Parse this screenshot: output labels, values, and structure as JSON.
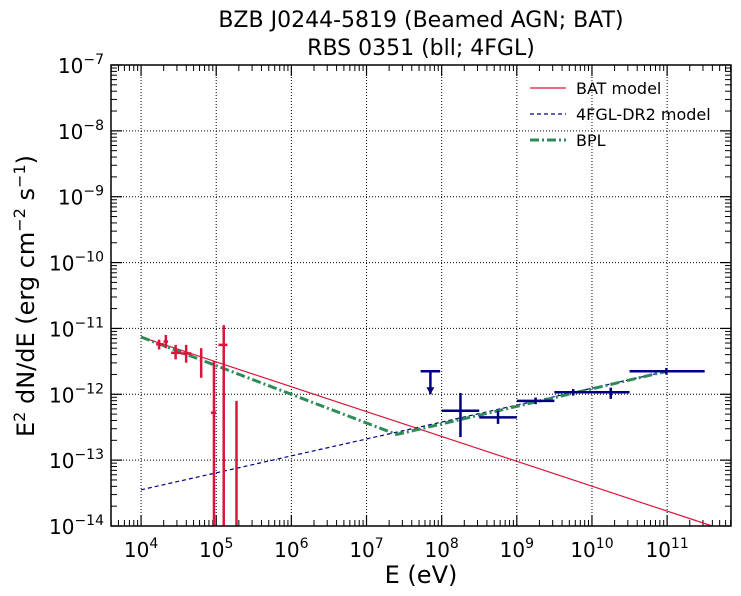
{
  "chart_data": {
    "type": "scatter",
    "title_line1": "BZB J0244-5819 (Beamed AGN; BAT)",
    "title_line2": "RBS 0351 (bll; 4FGL)",
    "xlabel": "E (eV)",
    "ylabel_main": "E",
    "ylabel_rest": "dN/dE (erg cm",
    "ylabel_end": "s",
    "ylabel_close": ")",
    "ylabel_exp1": "2",
    "ylabel_exp2": "−2",
    "ylabel_exp3": "−1",
    "x_log_range": [
      3.6,
      11.85
    ],
    "y_log_range": [
      -14,
      -7
    ],
    "x_scale": "log",
    "y_scale": "log",
    "grid": true,
    "legend_position": "top-right",
    "x_ticks": [
      {
        "exp": 4,
        "label_base": "10",
        "label_exp": "4"
      },
      {
        "exp": 5,
        "label_base": "10",
        "label_exp": "5"
      },
      {
        "exp": 6,
        "label_base": "10",
        "label_exp": "6"
      },
      {
        "exp": 7,
        "label_base": "10",
        "label_exp": "7"
      },
      {
        "exp": 8,
        "label_base": "10",
        "label_exp": "8"
      },
      {
        "exp": 9,
        "label_base": "10",
        "label_exp": "9"
      },
      {
        "exp": 10,
        "label_base": "10",
        "label_exp": "10"
      },
      {
        "exp": 11,
        "label_base": "10",
        "label_exp": "11"
      }
    ],
    "y_ticks": [
      {
        "exp": -14,
        "label_base": "10",
        "label_exp": "−14"
      },
      {
        "exp": -13,
        "label_base": "10",
        "label_exp": "−13"
      },
      {
        "exp": -12,
        "label_base": "10",
        "label_exp": "−12"
      },
      {
        "exp": -11,
        "label_base": "10",
        "label_exp": "−11"
      },
      {
        "exp": -10,
        "label_base": "10",
        "label_exp": "−10"
      },
      {
        "exp": -9,
        "label_base": "10",
        "label_exp": "−9"
      },
      {
        "exp": -8,
        "label_base": "10",
        "label_exp": "−8"
      },
      {
        "exp": -7,
        "label_base": "10",
        "label_exp": "−7"
      }
    ],
    "series": [
      {
        "name": "BAT model",
        "kind": "line",
        "color": "#dc143c",
        "dash": "solid",
        "points": [
          [
            4.0,
            -11.13
          ],
          [
            11.6,
            -14.0
          ]
        ]
      },
      {
        "name": "4FGL-DR2 model",
        "kind": "line",
        "color": "#000080",
        "dash": "dashed",
        "points": [
          [
            4.0,
            -13.45
          ],
          [
            11.0,
            -11.65
          ]
        ]
      },
      {
        "name": "BPL",
        "kind": "line",
        "color": "#2e8b57",
        "dash": "dashdot",
        "points": [
          [
            4.0,
            -11.13
          ],
          [
            7.4,
            -12.61
          ],
          [
            11.0,
            -11.65
          ]
        ]
      }
    ],
    "bat_points": [
      {
        "x": 4.24,
        "y": -11.24,
        "xlo": 4.2,
        "xhi": 4.3,
        "ylo": -11.32,
        "yhi": -11.17
      },
      {
        "x": 4.33,
        "y": -11.2,
        "xlo": 4.3,
        "xhi": 4.36,
        "ylo": -11.3,
        "yhi": -11.1
      },
      {
        "x": 4.46,
        "y": -11.37,
        "xlo": 4.4,
        "xhi": 4.53,
        "ylo": -11.47,
        "yhi": -11.25
      },
      {
        "x": 4.6,
        "y": -11.38,
        "xlo": 4.53,
        "xhi": 4.67,
        "ylo": -11.52,
        "yhi": -11.25
      },
      {
        "x": 4.8,
        "y": -11.5,
        "xlo": 4.79,
        "xhi": 4.81,
        "ylo": -11.75,
        "yhi": -11.3
      },
      {
        "x": 4.97,
        "y": -12.28,
        "xlo": 4.93,
        "xhi": 5.0,
        "ylo": -14.0,
        "yhi": -11.5
      },
      {
        "x": 5.1,
        "y": -11.25,
        "xlo": 5.03,
        "xhi": 5.15,
        "ylo": -14.0,
        "yhi": -10.95
      },
      {
        "x": 5.27,
        "y": -14.0,
        "xlo": 5.27,
        "xhi": 5.27,
        "ylo": -14.0,
        "yhi": -12.1
      }
    ],
    "fermi_points": [
      {
        "x": 8.25,
        "y": -12.25,
        "xlo": 8.0,
        "xhi": 8.5,
        "ylo": -12.65,
        "yhi": -11.98
      },
      {
        "x": 8.75,
        "y": -12.35,
        "xlo": 8.5,
        "xhi": 9.0,
        "ylo": -12.45,
        "yhi": -12.25
      },
      {
        "x": 9.25,
        "y": -12.1,
        "xlo": 9.0,
        "xhi": 9.5,
        "ylo": -12.15,
        "yhi": -12.05
      },
      {
        "x": 9.75,
        "y": -11.97,
        "xlo": 9.5,
        "xhi": 10.0,
        "ylo": -12.02,
        "yhi": -11.92
      },
      {
        "x": 10.25,
        "y": -11.97,
        "xlo": 10.0,
        "xhi": 10.5,
        "ylo": -12.07,
        "yhi": -11.9
      },
      {
        "x": 10.99,
        "y": -11.65,
        "xlo": 10.5,
        "xhi": 11.5,
        "ylo": -11.7,
        "yhi": -11.6
      }
    ],
    "fermi_upper_limits": [
      {
        "x": 7.85,
        "y": -11.65,
        "xlo": 7.72,
        "xhi": 7.98,
        "arrow_to": -12.0
      }
    ]
  }
}
